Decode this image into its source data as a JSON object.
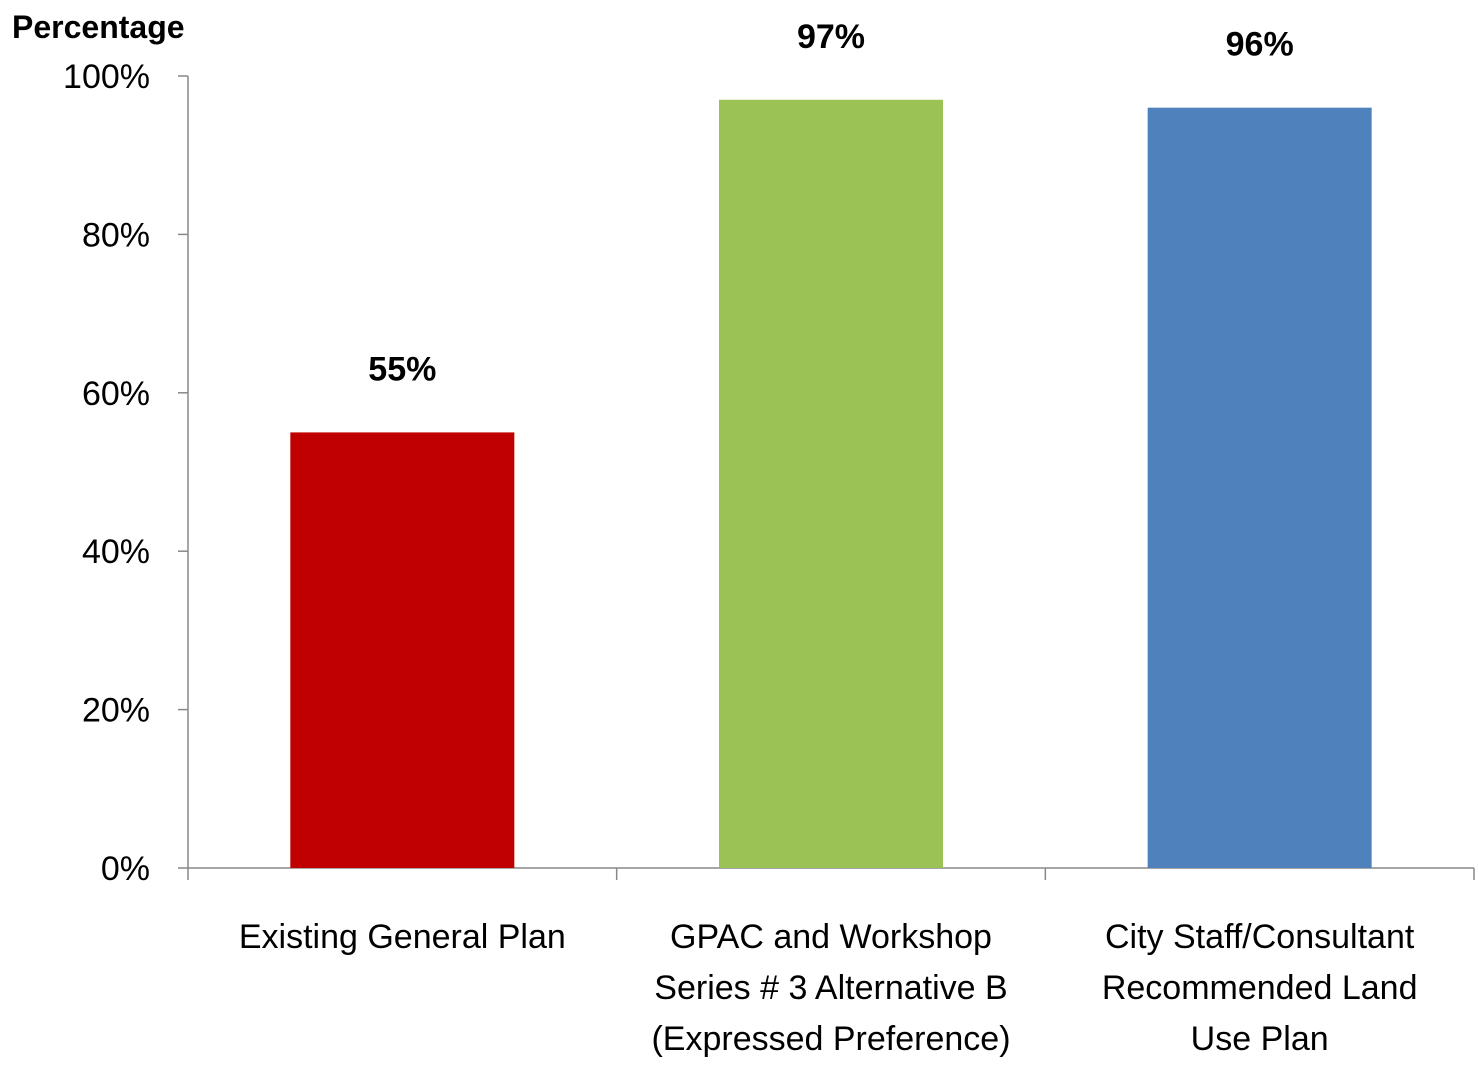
{
  "chart_data": {
    "type": "bar",
    "ylabel": "Percentage",
    "xlabel": "",
    "title": "",
    "categories": [
      [
        "Existing General Plan"
      ],
      [
        "GPAC and Workshop",
        "Series # 3 Alternative B",
        "(Expressed Preference)"
      ],
      [
        "City Staff/Consultant",
        "Recommended Land",
        "Use Plan"
      ]
    ],
    "values": [
      55,
      97,
      96
    ],
    "data_labels": [
      "55%",
      "97%",
      "96%"
    ],
    "colors": [
      "#C00000",
      "#9BC254",
      "#4F81BD"
    ],
    "ylim": [
      0,
      100
    ],
    "yticks": [
      0,
      20,
      40,
      60,
      80,
      100
    ],
    "ytick_labels": [
      "0%",
      "20%",
      "40%",
      "60%",
      "80%",
      "100%"
    ],
    "grid": false,
    "legend": "none"
  }
}
